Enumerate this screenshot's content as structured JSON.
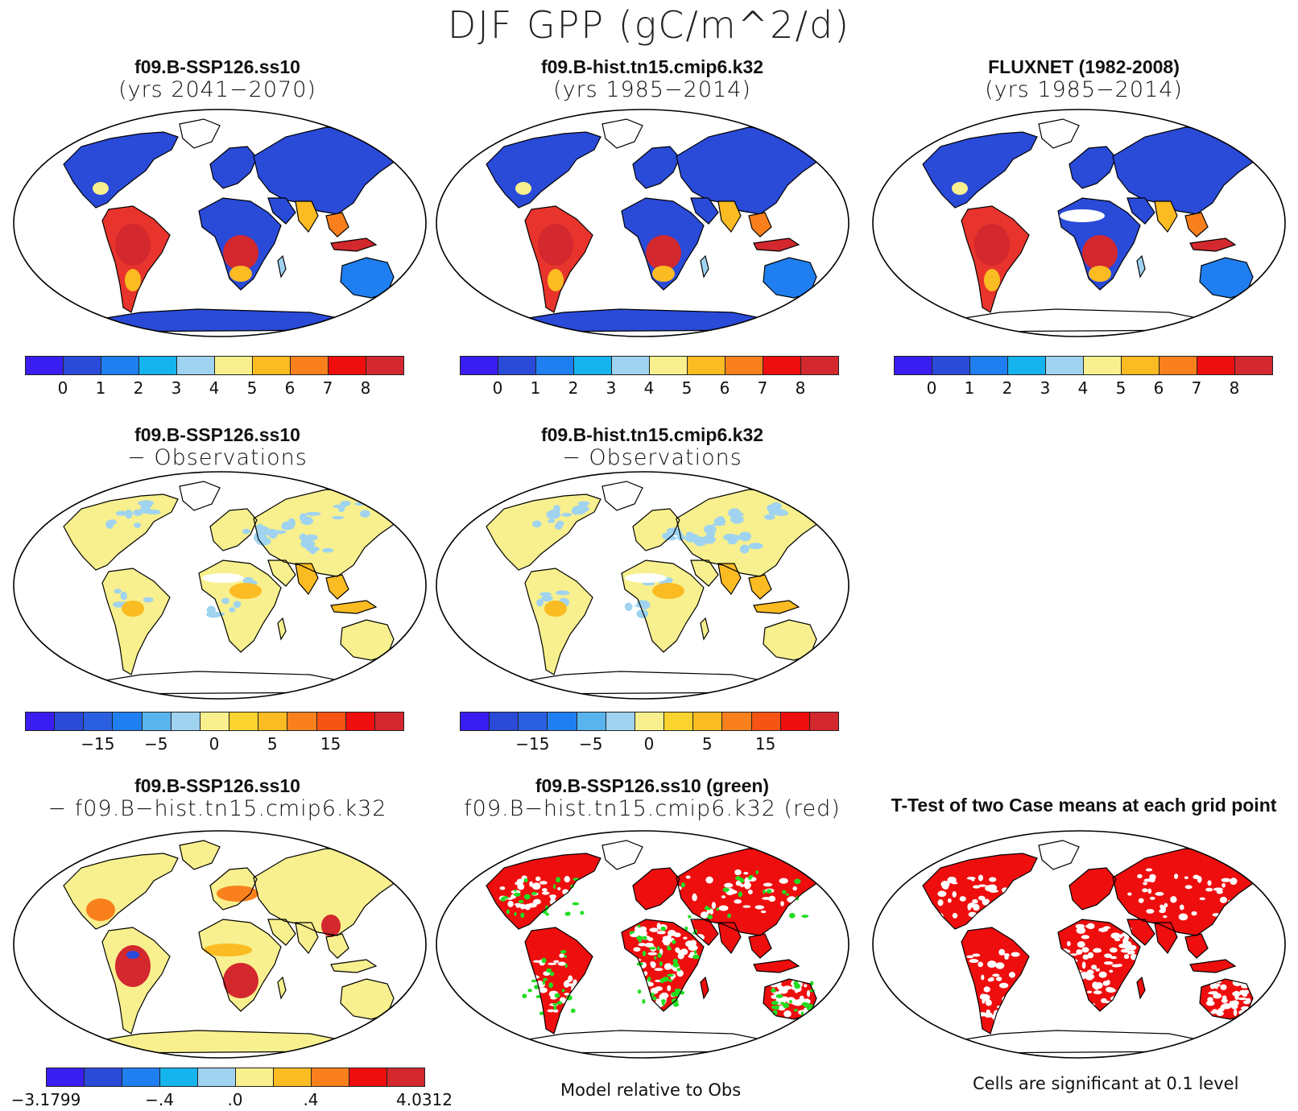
{
  "title": "DJF GPP (gC/m^2/d)",
  "panels": [
    {
      "title": "f09.B-SSP126.ss10",
      "subtitle": "(yrs 2041−2070)",
      "kind": "field"
    },
    {
      "title": "f09.B-hist.tn15.cmip6.k32",
      "subtitle": "(yrs 1985−2014)",
      "kind": "field"
    },
    {
      "title": "FLUXNET (1982-2008)",
      "subtitle": "(yrs 1985−2014)",
      "kind": "field"
    },
    {
      "title": "f09.B-SSP126.ss10",
      "subtitle": "− Observations",
      "kind": "diff"
    },
    {
      "title": "f09.B-hist.tn15.cmip6.k32",
      "subtitle": "− Observations",
      "kind": "diff"
    },
    {
      "title": "f09.B-SSP126.ss10",
      "subtitle": "− f09.B−hist.tn15.cmip6.k32",
      "kind": "casediff"
    },
    {
      "title": "f09.B-SSP126.ss10 (green)",
      "subtitle": "f09.B−hist.tn15.cmip6.k32 (red)",
      "kind": "relative"
    },
    {
      "title": "T-Test of two Case means at each grid point",
      "subtitle": "",
      "kind": "ttest"
    }
  ],
  "colorbars": {
    "absolute": {
      "colors": [
        "#3a1df0",
        "#2a4ad8",
        "#1f7ff0",
        "#16b4ee",
        "#9fd3f0",
        "#f8f08e",
        "#fbbb22",
        "#f9801c",
        "#ee0e0e",
        "#d2282e"
      ],
      "labels": [
        "0",
        "1",
        "2",
        "3",
        "4",
        "5",
        "6",
        "7",
        "8"
      ]
    },
    "difference": {
      "colors": [
        "#3a1df0",
        "#2a4ad8",
        "#2a5fe0",
        "#1f7ff0",
        "#59b4ee",
        "#9fd3f0",
        "#f8f08e",
        "#fbd32e",
        "#fbbb22",
        "#f9801c",
        "#f55414",
        "#ee0e0e",
        "#d2282e"
      ],
      "labels": [
        "−15",
        "−5",
        "0",
        "5",
        "15"
      ]
    },
    "case": {
      "colors": [
        "#3a1df0",
        "#2a4ad8",
        "#1f7ff0",
        "#16b4ee",
        "#9fd3f0",
        "#f8f08e",
        "#fbbb22",
        "#f9801c",
        "#ee0e0e",
        "#d2282e"
      ],
      "labels": [
        "−3.1799",
        "−.4",
        ".0",
        ".4",
        "4.0312"
      ]
    }
  },
  "footnotes": {
    "relative": "Model relative to Obs",
    "ttest": "Cells are significant at 0.1 level"
  }
}
